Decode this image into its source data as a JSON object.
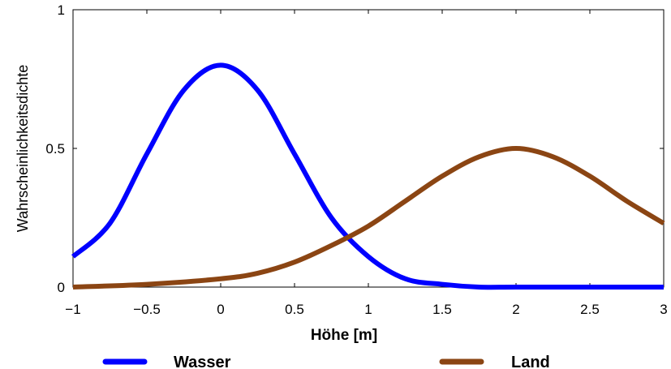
{
  "chart_data": {
    "type": "line",
    "xlabel": "Höhe [m]",
    "ylabel": "Wahrscheinlichkeitsdichte",
    "xlim": [
      -1,
      3
    ],
    "ylim": [
      0,
      1
    ],
    "x_ticks": [
      "−1",
      "−0.5",
      "0",
      "0.5",
      "1",
      "1.5",
      "2",
      "2.5",
      "3"
    ],
    "y_ticks": [
      "0",
      "0.5",
      "1"
    ],
    "grid": false,
    "legend_position": "bottom",
    "series": [
      {
        "name": "Wasser",
        "color": "#0000ff",
        "x": [
          -1.0,
          -0.75,
          -0.5,
          -0.25,
          0.0,
          0.25,
          0.5,
          0.75,
          1.0,
          1.25,
          1.5,
          1.75,
          2.0,
          2.5,
          3.0
        ],
        "y": [
          0.11,
          0.23,
          0.48,
          0.71,
          0.8,
          0.71,
          0.48,
          0.25,
          0.11,
          0.03,
          0.01,
          0.0,
          0.0,
          0.0,
          0.0
        ]
      },
      {
        "name": "Land",
        "color": "#8b4513",
        "x": [
          -1.0,
          -0.5,
          0.0,
          0.25,
          0.5,
          0.75,
          1.0,
          1.25,
          1.5,
          1.75,
          2.0,
          2.25,
          2.5,
          2.75,
          3.0
        ],
        "y": [
          0.0,
          0.01,
          0.03,
          0.05,
          0.09,
          0.15,
          0.22,
          0.31,
          0.4,
          0.47,
          0.5,
          0.47,
          0.4,
          0.31,
          0.23
        ]
      }
    ]
  }
}
